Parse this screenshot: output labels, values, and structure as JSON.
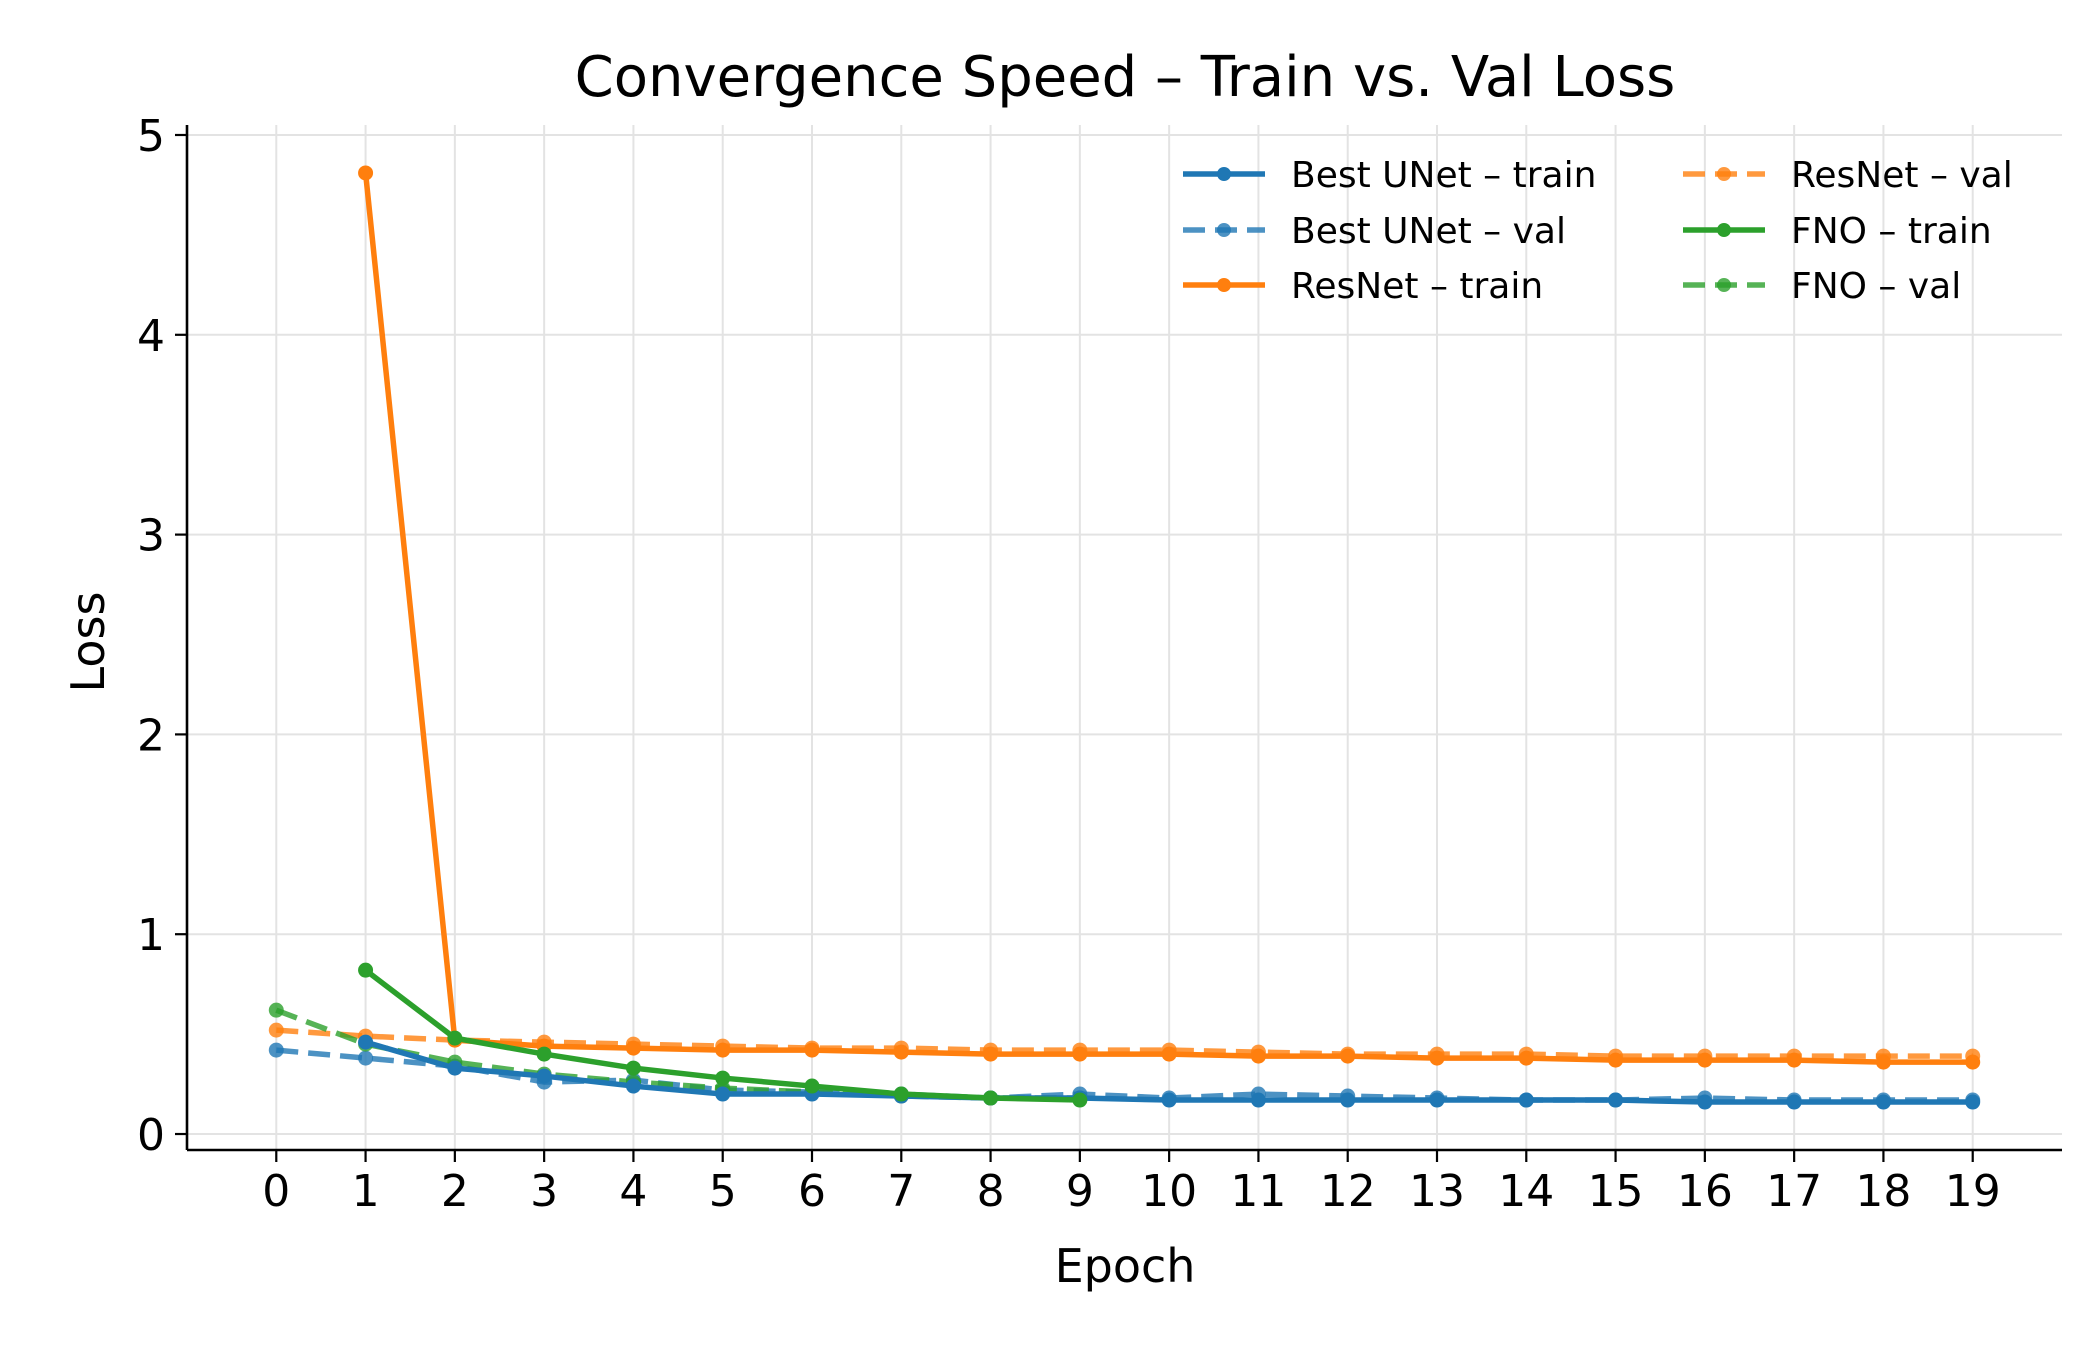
{
  "chart_data": {
    "type": "line",
    "title": "Convergence Speed – Train vs. Val Loss",
    "xlabel": "Epoch",
    "ylabel": "Loss",
    "xlim": [
      -1,
      20
    ],
    "ylim": [
      -0.08,
      5.05
    ],
    "xticks": [
      0,
      1,
      2,
      3,
      4,
      5,
      6,
      7,
      8,
      9,
      10,
      11,
      12,
      13,
      14,
      15,
      16,
      17,
      18,
      19
    ],
    "yticks": [
      0,
      1,
      2,
      3,
      4,
      5
    ],
    "grid": true,
    "legend": "top-right",
    "series": [
      {
        "name": "Best UNet – train",
        "color": "#1f77b4",
        "dashed": false,
        "x": [
          1,
          2,
          3,
          4,
          5,
          6,
          7,
          8,
          9,
          10,
          11,
          12,
          13,
          14,
          15,
          16,
          17,
          18,
          19
        ],
        "values": [
          0.46,
          0.33,
          0.29,
          0.24,
          0.2,
          0.2,
          0.19,
          0.18,
          0.18,
          0.17,
          0.17,
          0.17,
          0.17,
          0.17,
          0.17,
          0.16,
          0.16,
          0.16,
          0.16
        ]
      },
      {
        "name": "Best UNet – val",
        "color": "#1f77b4",
        "dashed": true,
        "x": [
          0,
          1,
          2,
          3,
          4,
          5,
          6,
          7,
          8,
          9,
          10,
          11,
          12,
          13,
          14,
          15,
          16,
          17,
          18,
          19
        ],
        "values": [
          0.42,
          0.38,
          0.34,
          0.26,
          0.27,
          0.22,
          0.21,
          0.2,
          0.18,
          0.2,
          0.18,
          0.2,
          0.19,
          0.18,
          0.17,
          0.17,
          0.18,
          0.17,
          0.17,
          0.17
        ]
      },
      {
        "name": "ResNet – train",
        "color": "#ff7f0e",
        "dashed": false,
        "x": [
          1,
          2,
          3,
          4,
          5,
          6,
          7,
          8,
          9,
          10,
          11,
          12,
          13,
          14,
          15,
          16,
          17,
          18,
          19
        ],
        "values": [
          4.81,
          0.47,
          0.44,
          0.43,
          0.42,
          0.42,
          0.41,
          0.4,
          0.4,
          0.4,
          0.39,
          0.39,
          0.38,
          0.38,
          0.37,
          0.37,
          0.37,
          0.36,
          0.36
        ]
      },
      {
        "name": "ResNet – val",
        "color": "#ff7f0e",
        "dashed": true,
        "x": [
          0,
          1,
          2,
          3,
          4,
          5,
          6,
          7,
          8,
          9,
          10,
          11,
          12,
          13,
          14,
          15,
          16,
          17,
          18,
          19
        ],
        "values": [
          0.52,
          0.49,
          0.47,
          0.46,
          0.45,
          0.44,
          0.43,
          0.43,
          0.42,
          0.42,
          0.42,
          0.41,
          0.4,
          0.4,
          0.4,
          0.39,
          0.39,
          0.39,
          0.39,
          0.39
        ]
      },
      {
        "name": "FNO – train",
        "color": "#2ca02c",
        "dashed": false,
        "x": [
          1,
          2,
          3,
          4,
          5,
          6,
          7,
          8,
          9
        ],
        "values": [
          0.82,
          0.48,
          0.4,
          0.33,
          0.28,
          0.24,
          0.2,
          0.18,
          0.17
        ]
      },
      {
        "name": "FNO – val",
        "color": "#2ca02c",
        "dashed": true,
        "x": [
          0,
          1,
          2,
          3,
          4,
          5,
          6,
          7,
          8,
          9
        ],
        "values": [
          0.62,
          0.45,
          0.36,
          0.3,
          0.26,
          0.23,
          0.21,
          0.19,
          0.18,
          0.18
        ]
      }
    ]
  }
}
